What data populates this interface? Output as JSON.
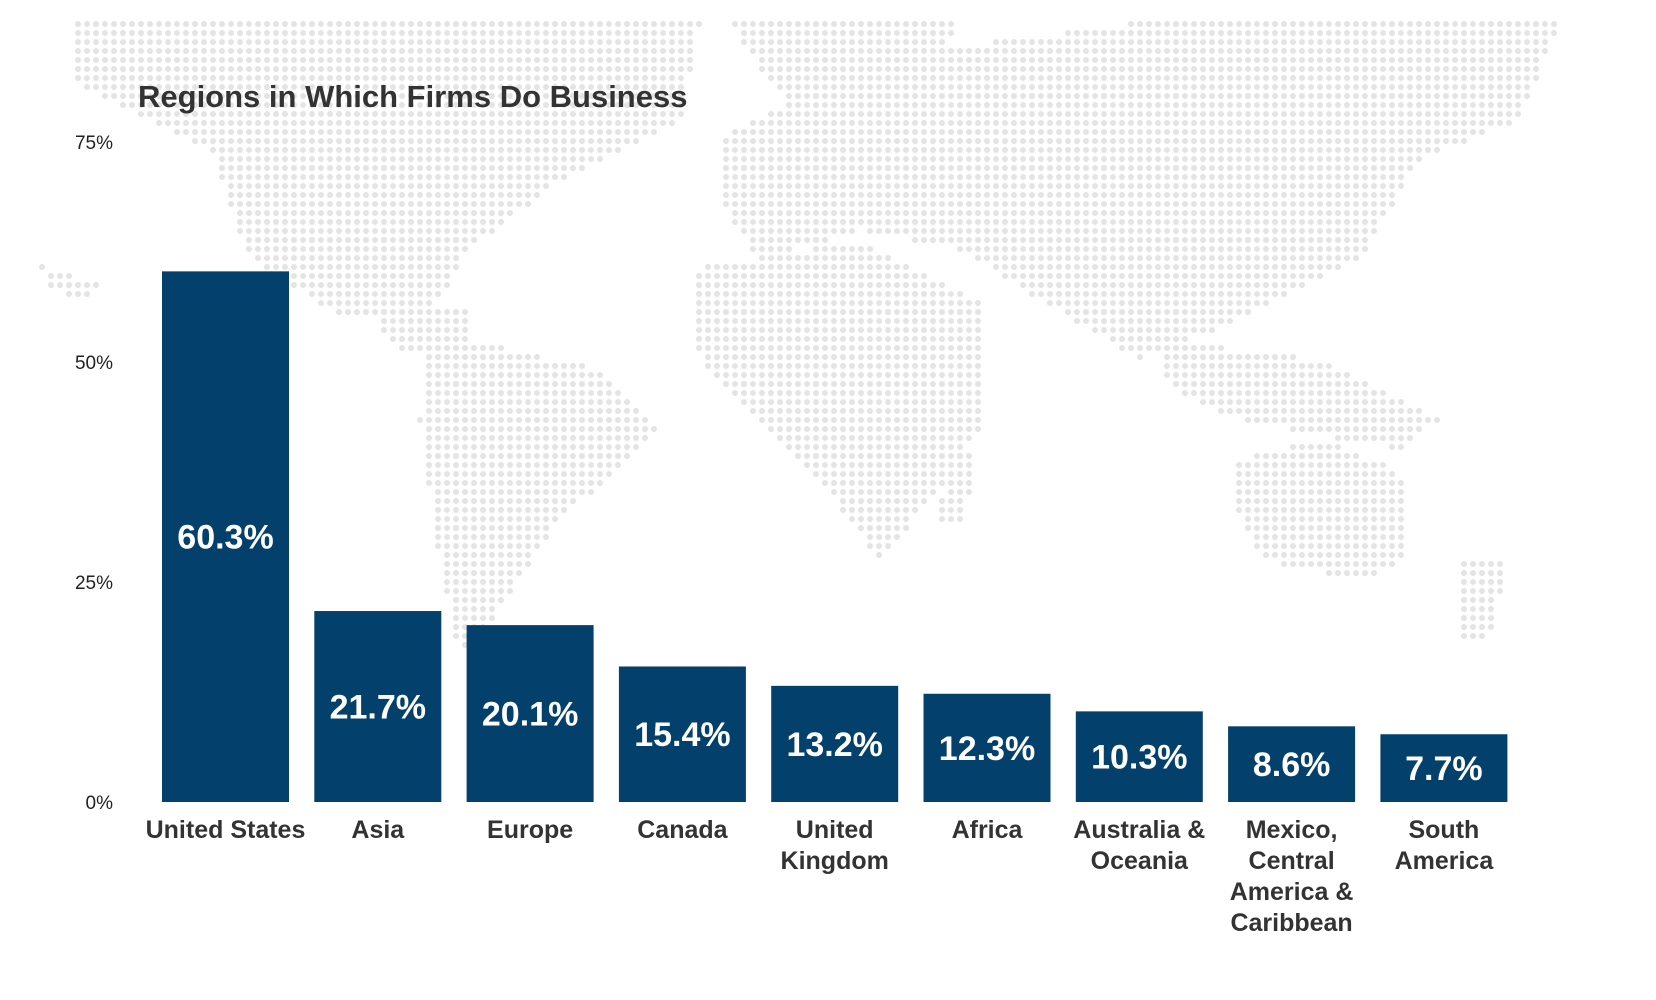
{
  "colors": {
    "bar": "#04406c",
    "bar_label": "#ffffff",
    "text": "#333333",
    "map_dots": "#e4e4e4"
  },
  "background": {
    "icon": "world-dot-map"
  },
  "chart_data": {
    "type": "bar",
    "title": "Regions in Which Firms Do Business",
    "xlabel": "",
    "ylabel": "",
    "ylim": [
      0,
      75
    ],
    "yticks": [
      0,
      25,
      50,
      75
    ],
    "ytick_labels": [
      "0%",
      "25%",
      "50%",
      "75%"
    ],
    "grid": false,
    "legend": "none",
    "categories": [
      "United States",
      "Asia",
      "Europe",
      "Canada",
      "United Kingdom",
      "Africa",
      "Australia & Oceania",
      "Mexico, Central America & Caribbean",
      "South America"
    ],
    "category_lines": [
      [
        "United States"
      ],
      [
        "Asia"
      ],
      [
        "Europe"
      ],
      [
        "Canada"
      ],
      [
        "United",
        "Kingdom"
      ],
      [
        "Africa"
      ],
      [
        "Australia &",
        "Oceania"
      ],
      [
        "Mexico,",
        "Central",
        "America &",
        "Caribbean"
      ],
      [
        "South",
        "America"
      ]
    ],
    "values": [
      60.3,
      21.7,
      20.1,
      15.4,
      13.2,
      12.3,
      10.3,
      8.6,
      7.7
    ],
    "value_labels": [
      "60.3%",
      "21.7%",
      "20.1%",
      "15.4%",
      "13.2%",
      "12.3%",
      "10.3%",
      "8.6%",
      "7.7%"
    ]
  }
}
